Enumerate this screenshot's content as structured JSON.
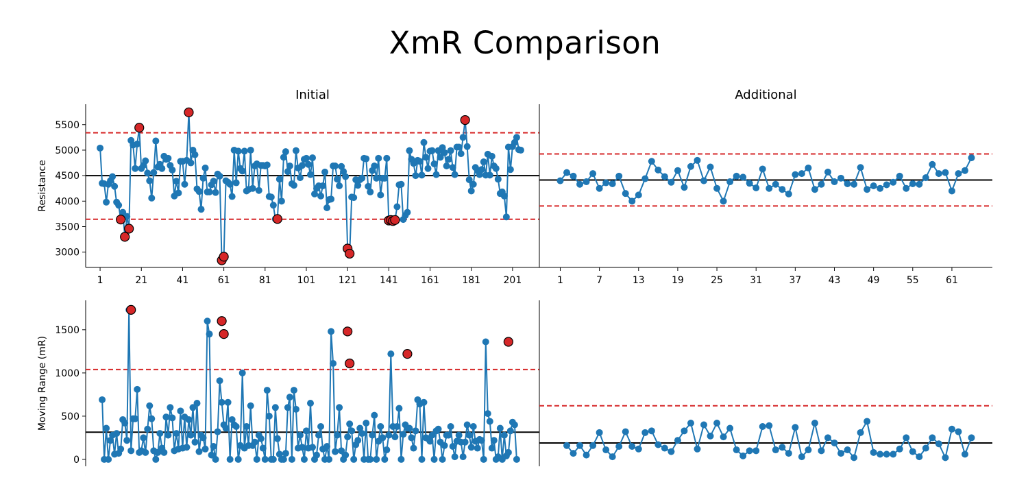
{
  "title": "XmR Comparison",
  "colors": {
    "series": "#1f77b4",
    "center_line": "#000000",
    "limit_line": "#d62728",
    "outlier": "#d62728"
  },
  "chart_data": [
    {
      "id": "initial_x",
      "type": "line",
      "title": "Initial",
      "ylabel": "Resistance",
      "xlabel": "",
      "xlim": [
        -6,
        214
      ],
      "ylim": [
        2700,
        5900
      ],
      "xticks": [
        1,
        21,
        41,
        61,
        81,
        101,
        121,
        141,
        161,
        181,
        201
      ],
      "yticks": [
        3000,
        3500,
        4000,
        4500,
        5000,
        5500
      ],
      "x_start": 1,
      "center": 4500,
      "ucl": 5340,
      "lcl": 3645,
      "values": [
        5040,
        4350,
        4340,
        3980,
        4330,
        4400,
        4480,
        4290,
        3980,
        3920,
        3640,
        3780,
        3300,
        3700,
        3460,
        5190,
        5100,
        4640,
        5120,
        5440,
        4640,
        4700,
        4790,
        4550,
        4400,
        4060,
        4560,
        5180,
        4670,
        4720,
        4640,
        4880,
        4820,
        4840,
        4700,
        4610,
        4100,
        4390,
        4160,
        4780,
        4780,
        4330,
        4800,
        5740,
        4750,
        5000,
        4910,
        4240,
        4190,
        3840,
        4450,
        4650,
        4180,
        4180,
        4320,
        4390,
        4170,
        4530,
        4490,
        2840,
        2910,
        4400,
        4370,
        4330,
        4090,
        5000,
        4360,
        4980,
        4640,
        4590,
        4980,
        4200,
        4230,
        5000,
        4250,
        4690,
        4730,
        4210,
        4700,
        4700,
        4690,
        4710,
        4090,
        4080,
        3920,
        3650,
        3650,
        4430,
        4000,
        4860,
        4970,
        4580,
        4690,
        4340,
        4310,
        4990,
        4650,
        4460,
        4700,
        4820,
        4840,
        4720,
        4520,
        4850,
        4140,
        4250,
        4300,
        4100,
        4300,
        4570,
        3870,
        4030,
        4040,
        4690,
        4690,
        4430,
        4300,
        4680,
        4580,
        4480,
        3070,
        2970,
        4080,
        4070,
        4420,
        4310,
        4420,
        4450,
        4840,
        4830,
        4290,
        4180,
        4600,
        4690,
        4450,
        4840,
        4120,
        4450,
        4450,
        4840,
        3620,
        3630,
        3610,
        3630,
        3890,
        4320,
        4330,
        3640,
        3720,
        3780,
        4990,
        4820,
        4740,
        4500,
        4800,
        4780,
        4510,
        5150,
        4860,
        4640,
        4980,
        4990,
        4730,
        4520,
        4990,
        4860,
        5050,
        4950,
        4690,
        4820,
        4990,
        4660,
        4520,
        5060,
        5060,
        4930,
        5250,
        5590,
        5070,
        4420,
        4200,
        4330,
        4660,
        4600,
        4520,
        4620,
        4770,
        4510,
        4920,
        4510,
        4880,
        4690,
        4640,
        4430,
        4150,
        4180,
        4100,
        3690,
        5060,
        4620,
        5070,
        5150,
        5250,
        5010,
        5000
      ],
      "outliers": [
        {
          "x": 11,
          "y": 3640
        },
        {
          "x": 13,
          "y": 3300
        },
        {
          "x": 15,
          "y": 3460
        },
        {
          "x": 20,
          "y": 5440
        },
        {
          "x": 44,
          "y": 5740
        },
        {
          "x": 60,
          "y": 2840
        },
        {
          "x": 61,
          "y": 2910
        },
        {
          "x": 87,
          "y": 3650
        },
        {
          "x": 121,
          "y": 3070
        },
        {
          "x": 122,
          "y": 2970
        },
        {
          "x": 141,
          "y": 3620
        },
        {
          "x": 142,
          "y": 3630
        },
        {
          "x": 143,
          "y": 3610
        },
        {
          "x": 144,
          "y": 3630
        },
        {
          "x": 178,
          "y": 5590
        }
      ]
    },
    {
      "id": "additional_x",
      "type": "line",
      "title": "Additional",
      "ylabel": "",
      "xlabel": "",
      "xlim": [
        -2.2,
        67.2
      ],
      "ylim": [
        2700,
        5900
      ],
      "xticks": [
        1,
        7,
        13,
        19,
        25,
        31,
        37,
        43,
        49,
        55,
        61
      ],
      "x_start": 1,
      "center": 4415,
      "ucl": 4925,
      "lcl": 3905,
      "values": [
        4400,
        4560,
        4490,
        4330,
        4380,
        4540,
        4250,
        4360,
        4340,
        4490,
        4150,
        4000,
        4120,
        4440,
        4780,
        4610,
        4480,
        4370,
        4600,
        4270,
        4680,
        4800,
        4400,
        4670,
        4250,
        4000,
        4380,
        4490,
        4470,
        4350,
        4260,
        4630,
        4250,
        4330,
        4230,
        4140,
        4520,
        4540,
        4650,
        4230,
        4330,
        4570,
        4380,
        4450,
        4340,
        4330,
        4660,
        4230,
        4300,
        4250,
        4320,
        4370,
        4490,
        4250,
        4340,
        4330,
        4460,
        4720,
        4540,
        4560,
        4200,
        4540,
        4600,
        4850
      ],
      "outliers": []
    },
    {
      "id": "initial_mr",
      "type": "line",
      "title": "",
      "ylabel": "Moving Range (mR)",
      "xlabel": "",
      "xlim": [
        -6,
        214
      ],
      "ylim": [
        -80,
        1840
      ],
      "xticks": [],
      "yticks": [
        0,
        500,
        1000,
        1500
      ],
      "x_start": 2,
      "center": 315,
      "ucl": 1040,
      "lcl": null,
      "values": [
        690,
        0,
        360,
        0,
        220,
        280,
        60,
        300,
        70,
        120,
        460,
        420,
        220,
        1730,
        100,
        470,
        470,
        810,
        80,
        100,
        250,
        80,
        350,
        620,
        470,
        100,
        0,
        80,
        300,
        130,
        80,
        490,
        280,
        600,
        480,
        100,
        300,
        120,
        560,
        130,
        490,
        140,
        460,
        280,
        600,
        200,
        650,
        90,
        280,
        250,
        120,
        1600,
        1450,
        50,
        150,
        0,
        320,
        910,
        660,
        400,
        360,
        660,
        0,
        460,
        400,
        380,
        0,
        160,
        1000,
        130,
        380,
        160,
        620,
        160,
        200,
        0,
        280,
        240,
        130,
        0,
        800,
        500,
        0,
        0,
        600,
        240,
        60,
        0,
        0,
        70,
        600,
        720,
        0,
        800,
        580,
        130,
        280,
        140,
        0,
        330,
        130,
        650,
        140,
        0,
        50,
        280,
        380,
        120,
        0,
        150,
        0,
        1480,
        1110,
        90,
        280,
        600,
        100,
        0,
        50,
        260,
        410,
        330,
        0,
        170,
        220,
        360,
        300,
        0,
        420,
        0,
        0,
        280,
        510,
        0,
        210,
        380,
        250,
        0,
        110,
        280,
        1220,
        380,
        260,
        380,
        590,
        0,
        290,
        400,
        360,
        360,
        250,
        130,
        330,
        690,
        640,
        0,
        660,
        250,
        240,
        210,
        280,
        0,
        330,
        350,
        200,
        0,
        160,
        280,
        280,
        380,
        150,
        30,
        210,
        280,
        200,
        30,
        200,
        400,
        280,
        140,
        380,
        210,
        130,
        230,
        220,
        0,
        1360,
        530,
        440,
        130,
        220,
        0,
        30,
        360,
        0,
        280,
        40,
        80,
        330,
        430,
        400,
        0
      ],
      "outliers": [
        {
          "x": 16,
          "y": 1730
        },
        {
          "x": 60,
          "y": 1600
        },
        {
          "x": 61,
          "y": 1450
        },
        {
          "x": 121,
          "y": 1480
        },
        {
          "x": 122,
          "y": 1110
        },
        {
          "x": 150,
          "y": 1220
        },
        {
          "x": 199,
          "y": 1360
        }
      ]
    },
    {
      "id": "additional_mr",
      "type": "line",
      "title": "",
      "ylabel": "",
      "xlabel": "",
      "xlim": [
        -2.2,
        67.2
      ],
      "ylim": [
        -80,
        1840
      ],
      "xticks": [],
      "x_start": 2,
      "center": 190,
      "ucl": 620,
      "lcl": null,
      "values": [
        160,
        70,
        160,
        50,
        160,
        310,
        110,
        30,
        150,
        320,
        150,
        120,
        310,
        330,
        170,
        130,
        90,
        220,
        330,
        420,
        120,
        400,
        270,
        420,
        260,
        360,
        110,
        40,
        100,
        100,
        380,
        390,
        110,
        140,
        70,
        370,
        30,
        110,
        420,
        100,
        250,
        190,
        70,
        110,
        20,
        310,
        440,
        80,
        60,
        60,
        60,
        120,
        250,
        90,
        30,
        130,
        250,
        180,
        20,
        350,
        320,
        60,
        250
      ],
      "outliers": []
    }
  ]
}
